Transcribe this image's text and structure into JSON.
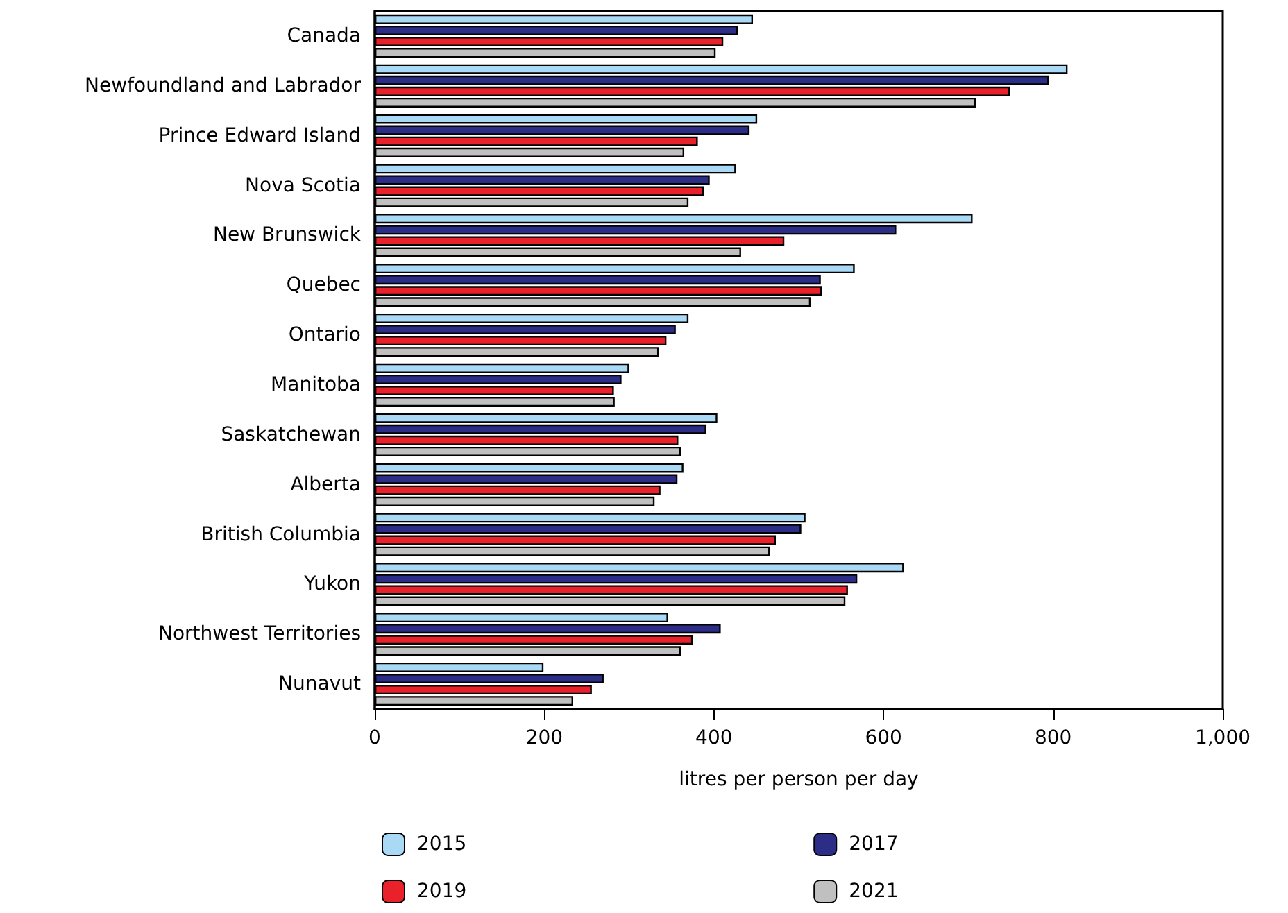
{
  "chart_data": {
    "type": "bar",
    "orientation": "horizontal",
    "xlabel": "litres per person per day",
    "categories": [
      "Canada",
      "Newfoundland and Labrador",
      "Prince Edward Island",
      "Nova Scotia",
      "New Brunswick",
      "Quebec",
      "Ontario",
      "Manitoba",
      "Saskatchewan",
      "Alberta",
      "British Columbia",
      "Yukon",
      "Northwest Territories",
      "Nunavut"
    ],
    "series": [
      {
        "name": "2015",
        "color": "#a9d9f5",
        "values": [
          446,
          817,
          451,
          426,
          705,
          566,
          370,
          300,
          404,
          364,
          508,
          624,
          346,
          199
        ]
      },
      {
        "name": "2017",
        "color": "#2b2d86",
        "values": [
          428,
          795,
          442,
          395,
          615,
          526,
          355,
          291,
          391,
          357,
          503,
          569,
          408,
          270
        ]
      },
      {
        "name": "2019",
        "color": "#e8212a",
        "values": [
          411,
          749,
          381,
          388,
          483,
          527,
          344,
          282,
          358,
          337,
          473,
          558,
          375,
          256
        ]
      },
      {
        "name": "2021",
        "color": "#c0c0c0",
        "values": [
          402,
          709,
          365,
          370,
          432,
          514,
          335,
          283,
          361,
          330,
          466,
          555,
          361,
          234
        ]
      }
    ],
    "xlim": [
      0,
      1000
    ],
    "xticks": [
      0,
      200,
      400,
      600,
      800,
      {
        "value": 1000,
        "label": "1,000"
      }
    ],
    "grid": false,
    "legend": "bottom"
  }
}
